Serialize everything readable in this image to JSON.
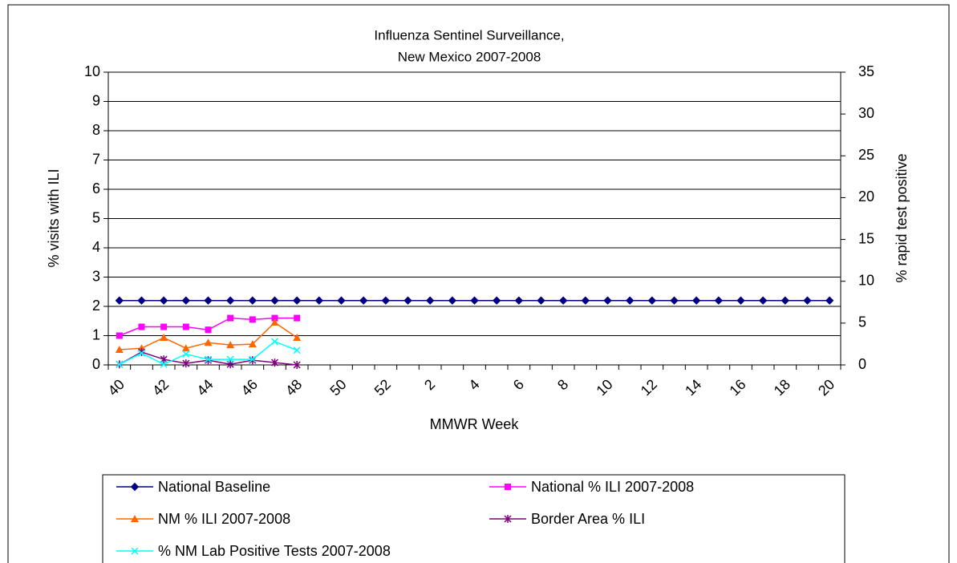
{
  "chart_data": {
    "type": "line",
    "title": [
      "Influenza Sentinel Surveillance,",
      "New Mexico 2007-2008"
    ],
    "xlabel": "MMWR Week",
    "ylabel": "% visits with ILI",
    "y2label": "% rapid test positive",
    "categories": [
      "40",
      null,
      "42",
      null,
      "44",
      null,
      "46",
      null,
      "48",
      null,
      "50",
      null,
      "52",
      null,
      "2",
      null,
      "4",
      null,
      "6",
      null,
      "8",
      null,
      "10",
      null,
      "12",
      null,
      "14",
      null,
      "16",
      null,
      "18",
      null,
      "20"
    ],
    "ylim": [
      0,
      10
    ],
    "yticks": [
      0,
      1,
      2,
      3,
      4,
      5,
      6,
      7,
      8,
      9,
      10
    ],
    "y2lim": [
      0,
      35
    ],
    "y2ticks": [
      0,
      5,
      10,
      15,
      20,
      25,
      30,
      35
    ],
    "grid": true,
    "series": [
      {
        "name": "National Baseline",
        "color": "#000080",
        "marker": "diamond",
        "values": [
          2.2,
          2.2,
          2.2,
          2.2,
          2.2,
          2.2,
          2.2,
          2.2,
          2.2,
          2.2,
          2.2,
          2.2,
          2.2,
          2.2,
          2.2,
          2.2,
          2.2,
          2.2,
          2.2,
          2.2,
          2.2,
          2.2,
          2.2,
          2.2,
          2.2,
          2.2,
          2.2,
          2.2,
          2.2,
          2.2,
          2.2,
          2.2,
          2.2
        ]
      },
      {
        "name": "National % ILI 2007-2008",
        "color": "#ff00ff",
        "marker": "square",
        "values": [
          1.0,
          1.3,
          1.3,
          1.3,
          1.2,
          1.6,
          1.55,
          1.6,
          1.6,
          null,
          null,
          null,
          null,
          null,
          null,
          null,
          null,
          null,
          null,
          null,
          null,
          null,
          null,
          null,
          null,
          null,
          null,
          null,
          null,
          null,
          null,
          null,
          null
        ]
      },
      {
        "name": "NM % ILI 2007-2008",
        "color": "#ff6600",
        "marker": "triangle",
        "values": [
          0.52,
          0.57,
          0.93,
          0.57,
          0.76,
          0.68,
          0.71,
          1.45,
          0.93,
          null,
          null,
          null,
          null,
          null,
          null,
          null,
          null,
          null,
          null,
          null,
          null,
          null,
          null,
          null,
          null,
          null,
          null,
          null,
          null,
          null,
          null,
          null,
          null
        ]
      },
      {
        "name": "Border Area % ILI",
        "color": "#800080",
        "marker": "asterisk",
        "values": [
          0.02,
          0.44,
          0.19,
          0.05,
          0.16,
          0.02,
          0.16,
          0.08,
          0.0,
          null,
          null,
          null,
          null,
          null,
          null,
          null,
          null,
          null,
          null,
          null,
          null,
          null,
          null,
          null,
          null,
          null,
          null,
          null,
          null,
          null,
          null,
          null,
          null
        ]
      },
      {
        "name": "% NM Lab Positive Tests 2007-2008",
        "color": "#00ffff",
        "marker": "x",
        "values": [
          0.02,
          0.4,
          0.02,
          0.37,
          0.19,
          0.19,
          0.19,
          0.8,
          0.5,
          null,
          null,
          null,
          null,
          null,
          null,
          null,
          null,
          null,
          null,
          null,
          null,
          null,
          null,
          null,
          null,
          null,
          null,
          null,
          null,
          null,
          null,
          null,
          null
        ]
      }
    ]
  }
}
